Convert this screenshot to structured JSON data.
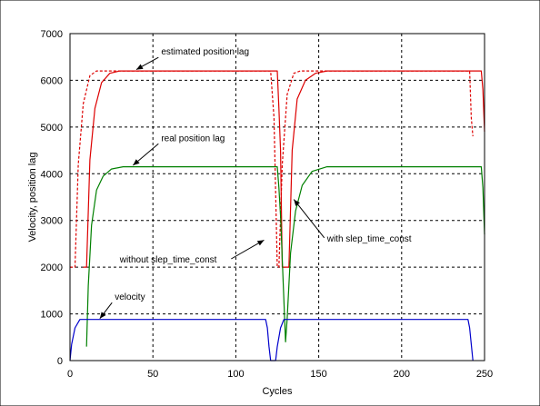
{
  "chart_data": {
    "type": "line",
    "title": "",
    "xlabel": "Cycles",
    "ylabel": "Velocity, position lag",
    "xlim": [
      0,
      250
    ],
    "ylim": [
      0,
      7000
    ],
    "xticks": [
      0,
      50,
      100,
      150,
      200,
      250
    ],
    "yticks": [
      0,
      1000,
      2000,
      3000,
      4000,
      5000,
      6000,
      7000
    ],
    "grid": true,
    "colors": {
      "estimated_lag": "#dd0000",
      "estimated_lag_dashed": "#dd0000",
      "real_lag": "#008000",
      "velocity": "#0000cc"
    },
    "series": [
      {
        "style": "dashed",
        "color": "#dd0000",
        "points": [
          [
            0,
            2000
          ],
          [
            3,
            2000
          ],
          [
            5,
            4200
          ],
          [
            8,
            5500
          ],
          [
            12,
            6100
          ],
          [
            16,
            6200
          ],
          [
            121,
            6200
          ],
          [
            123,
            5200
          ],
          [
            125,
            2000
          ],
          [
            126,
            2000
          ],
          [
            128,
            4200
          ],
          [
            131,
            5700
          ],
          [
            135,
            6150
          ],
          [
            139,
            6200
          ],
          [
            241,
            6200
          ],
          [
            242,
            5200
          ],
          [
            243,
            4800
          ]
        ]
      },
      {
        "style": "solid",
        "color": "#dd0000",
        "points": [
          [
            8,
            2000
          ],
          [
            10,
            2000
          ],
          [
            12,
            4300
          ],
          [
            15,
            5400
          ],
          [
            19,
            5950
          ],
          [
            24,
            6150
          ],
          [
            30,
            6200
          ],
          [
            125,
            6200
          ],
          [
            126,
            5400
          ],
          [
            127,
            4500
          ],
          [
            128,
            2000
          ],
          [
            132,
            2000
          ],
          [
            134,
            4500
          ],
          [
            137,
            5600
          ],
          [
            142,
            6000
          ],
          [
            148,
            6150
          ],
          [
            155,
            6200
          ],
          [
            248,
            6200
          ],
          [
            249,
            5800
          ],
          [
            250,
            4900
          ]
        ]
      },
      {
        "style": "solid",
        "color": "#008000",
        "points": [
          [
            10,
            300
          ],
          [
            11,
            1600
          ],
          [
            13,
            2900
          ],
          [
            16,
            3650
          ],
          [
            20,
            3950
          ],
          [
            25,
            4100
          ],
          [
            32,
            4150
          ],
          [
            125,
            4150
          ],
          [
            126,
            3700
          ],
          [
            127,
            3100
          ],
          [
            130,
            400
          ],
          [
            131,
            900
          ],
          [
            133,
            2300
          ],
          [
            136,
            3200
          ],
          [
            140,
            3750
          ],
          [
            146,
            4050
          ],
          [
            155,
            4150
          ],
          [
            248,
            4150
          ],
          [
            249,
            3700
          ],
          [
            250,
            2700
          ]
        ]
      },
      {
        "style": "solid",
        "color": "#0000cc",
        "points": [
          [
            0,
            0
          ],
          [
            1,
            350
          ],
          [
            3,
            700
          ],
          [
            6,
            880
          ],
          [
            118,
            880
          ],
          [
            119,
            700
          ],
          [
            120,
            300
          ],
          [
            121,
            0
          ],
          [
            124,
            0
          ],
          [
            125,
            300
          ],
          [
            127,
            700
          ],
          [
            129,
            880
          ],
          [
            240,
            880
          ],
          [
            241,
            700
          ],
          [
            242,
            350
          ],
          [
            243,
            0
          ]
        ]
      }
    ],
    "annotations": [
      {
        "text": "estimated position lag",
        "x": 55,
        "y": 6550,
        "arrow_to": [
          40,
          6230
        ]
      },
      {
        "text": "real position lag",
        "x": 55,
        "y": 4700,
        "arrow_to": [
          38,
          4180
        ]
      },
      {
        "text": "without slep_time_const",
        "x": 30,
        "y": 2100,
        "arrow_to": [
          117,
          2580
        ]
      },
      {
        "text": "with slep_time_const",
        "x": 155,
        "y": 2550,
        "arrow_to": [
          135,
          3450
        ]
      },
      {
        "text": "velocity",
        "x": 27,
        "y": 1300,
        "arrow_to": [
          18,
          900
        ]
      }
    ]
  }
}
